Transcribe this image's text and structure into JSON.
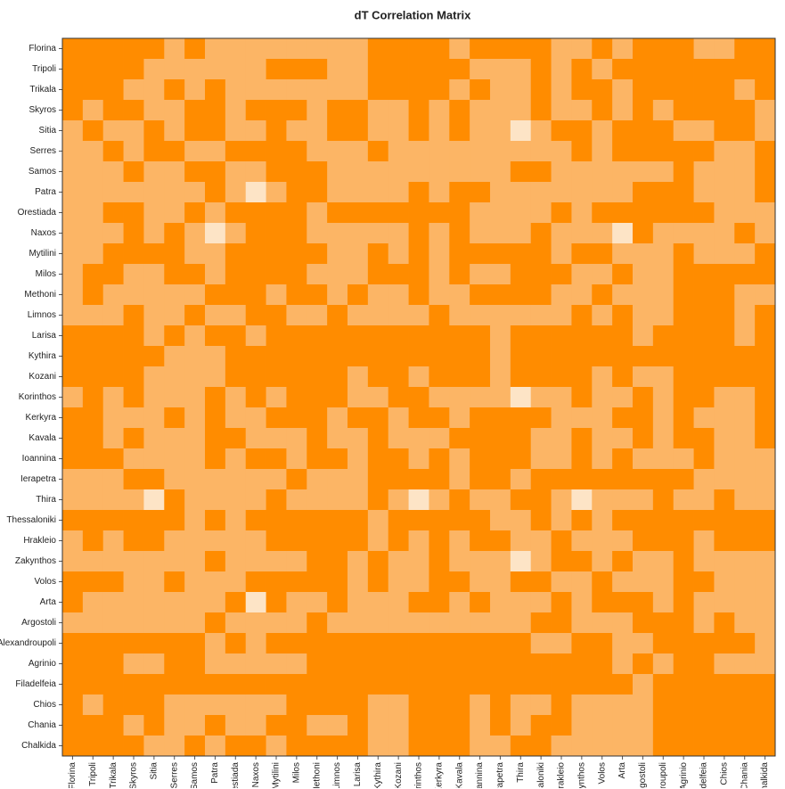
{
  "chart_data": {
    "type": "heatmap",
    "title": "dT Correlation Matrix",
    "categories": [
      "Florina",
      "Tripoli",
      "Trikala",
      "Skyros",
      "Sitia",
      "Serres",
      "Samos",
      "Patra",
      "Orestiada",
      "Naxos",
      "Mytilini",
      "Milos",
      "Methoni",
      "Limnos",
      "Larisa",
      "Kythira",
      "Kozani",
      "Korinthos",
      "Kerkyra",
      "Kavala",
      "Ioannina",
      "Ierapetra",
      "Thira",
      "Thessaloniki",
      "Hrakleio",
      "Zakynthos",
      "Volos",
      "Arta",
      "Argostoli",
      "Alexandroupoli",
      "Agrinio",
      "Filadelfeia",
      "Chios",
      "Chania",
      "Chalkida"
    ],
    "colors": [
      "#FF8C00",
      "#FCB565",
      "#FDE4C6"
    ],
    "values": [
      [
        0,
        0,
        0,
        0,
        0,
        1,
        0,
        1,
        1,
        1,
        1,
        1,
        1,
        1,
        1,
        0,
        0,
        0,
        0,
        1,
        0,
        0,
        0,
        0,
        1,
        1,
        0,
        1,
        0,
        0,
        0,
        1,
        1,
        0,
        0
      ],
      [
        0,
        0,
        0,
        0,
        1,
        1,
        1,
        1,
        1,
        1,
        0,
        0,
        0,
        1,
        1,
        0,
        0,
        0,
        0,
        0,
        1,
        1,
        1,
        0,
        1,
        0,
        1,
        0,
        0,
        0,
        0,
        0,
        0,
        0,
        0
      ],
      [
        0,
        0,
        0,
        1,
        1,
        0,
        1,
        0,
        1,
        1,
        1,
        1,
        1,
        1,
        1,
        0,
        0,
        0,
        0,
        1,
        0,
        1,
        1,
        0,
        1,
        0,
        0,
        1,
        0,
        0,
        0,
        0,
        0,
        1,
        0
      ],
      [
        0,
        1,
        0,
        0,
        1,
        1,
        0,
        0,
        1,
        0,
        0,
        0,
        1,
        0,
        0,
        1,
        1,
        0,
        1,
        0,
        1,
        1,
        1,
        0,
        1,
        1,
        0,
        1,
        0,
        1,
        0,
        0,
        0,
        0,
        1
      ],
      [
        1,
        0,
        1,
        1,
        0,
        1,
        0,
        0,
        1,
        1,
        0,
        1,
        1,
        0,
        0,
        1,
        1,
        0,
        1,
        0,
        1,
        1,
        2,
        1,
        0,
        0,
        1,
        0,
        0,
        0,
        1,
        1,
        0,
        0,
        1
      ],
      [
        1,
        1,
        0,
        1,
        0,
        0,
        1,
        1,
        0,
        0,
        0,
        0,
        1,
        1,
        1,
        0,
        1,
        1,
        1,
        1,
        1,
        1,
        1,
        1,
        1,
        0,
        1,
        0,
        0,
        0,
        0,
        0,
        1,
        1,
        0
      ],
      [
        1,
        1,
        1,
        0,
        1,
        1,
        0,
        0,
        1,
        1,
        0,
        0,
        0,
        1,
        1,
        1,
        1,
        1,
        1,
        1,
        1,
        1,
        0,
        0,
        1,
        1,
        1,
        1,
        1,
        1,
        0,
        1,
        1,
        1,
        0
      ],
      [
        1,
        1,
        1,
        1,
        1,
        1,
        1,
        0,
        1,
        2,
        1,
        0,
        0,
        1,
        1,
        1,
        1,
        0,
        1,
        0,
        0,
        1,
        1,
        1,
        1,
        1,
        1,
        1,
        0,
        0,
        0,
        1,
        1,
        1,
        0
      ],
      [
        1,
        1,
        0,
        0,
        1,
        1,
        0,
        1,
        0,
        0,
        0,
        0,
        1,
        0,
        0,
        0,
        0,
        0,
        0,
        0,
        1,
        1,
        1,
        1,
        0,
        1,
        0,
        0,
        0,
        0,
        0,
        0,
        1,
        1,
        1
      ],
      [
        1,
        1,
        1,
        0,
        1,
        0,
        1,
        2,
        1,
        0,
        0,
        0,
        1,
        1,
        1,
        1,
        1,
        0,
        1,
        0,
        1,
        1,
        1,
        0,
        1,
        1,
        1,
        2,
        0,
        1,
        1,
        1,
        1,
        0,
        1
      ],
      [
        1,
        1,
        0,
        0,
        0,
        0,
        1,
        1,
        0,
        0,
        0,
        0,
        0,
        1,
        1,
        0,
        1,
        0,
        1,
        0,
        0,
        0,
        0,
        0,
        1,
        0,
        0,
        1,
        1,
        1,
        0,
        1,
        1,
        1,
        0
      ],
      [
        1,
        0,
        0,
        1,
        1,
        0,
        0,
        1,
        0,
        0,
        0,
        0,
        1,
        1,
        1,
        0,
        0,
        0,
        1,
        0,
        1,
        1,
        0,
        0,
        0,
        1,
        1,
        0,
        1,
        1,
        0,
        0,
        0,
        0,
        0
      ],
      [
        1,
        0,
        1,
        1,
        1,
        1,
        1,
        0,
        0,
        0,
        1,
        0,
        0,
        1,
        0,
        1,
        1,
        0,
        1,
        1,
        0,
        0,
        0,
        0,
        1,
        1,
        0,
        1,
        1,
        1,
        0,
        0,
        0,
        1,
        1
      ],
      [
        1,
        1,
        1,
        0,
        1,
        1,
        0,
        1,
        1,
        0,
        0,
        1,
        1,
        0,
        1,
        1,
        1,
        1,
        0,
        1,
        1,
        1,
        1,
        1,
        1,
        0,
        1,
        0,
        1,
        1,
        0,
        0,
        0,
        1,
        0
      ],
      [
        0,
        0,
        0,
        0,
        1,
        0,
        1,
        0,
        0,
        1,
        0,
        0,
        0,
        0,
        0,
        0,
        0,
        0,
        0,
        0,
        0,
        1,
        0,
        0,
        0,
        0,
        0,
        0,
        1,
        0,
        0,
        0,
        0,
        1,
        0
      ],
      [
        0,
        0,
        0,
        0,
        0,
        1,
        1,
        1,
        0,
        0,
        0,
        0,
        0,
        0,
        0,
        0,
        0,
        0,
        0,
        0,
        0,
        1,
        0,
        0,
        0,
        0,
        0,
        0,
        0,
        0,
        0,
        0,
        0,
        0,
        0
      ],
      [
        0,
        0,
        0,
        0,
        1,
        1,
        1,
        1,
        0,
        0,
        0,
        0,
        0,
        0,
        1,
        0,
        0,
        1,
        0,
        0,
        0,
        1,
        0,
        0,
        0,
        0,
        1,
        0,
        1,
        1,
        0,
        0,
        0,
        0,
        0
      ],
      [
        1,
        0,
        1,
        0,
        1,
        1,
        1,
        0,
        1,
        0,
        1,
        0,
        0,
        0,
        1,
        1,
        0,
        0,
        1,
        1,
        1,
        1,
        2,
        1,
        1,
        0,
        1,
        1,
        0,
        1,
        0,
        0,
        1,
        1,
        0
      ],
      [
        0,
        0,
        1,
        1,
        1,
        0,
        1,
        0,
        1,
        1,
        0,
        0,
        0,
        1,
        0,
        0,
        1,
        0,
        0,
        1,
        0,
        0,
        0,
        0,
        1,
        1,
        1,
        0,
        0,
        1,
        0,
        1,
        1,
        1,
        0
      ],
      [
        0,
        0,
        1,
        0,
        1,
        1,
        1,
        0,
        0,
        1,
        1,
        1,
        0,
        1,
        1,
        0,
        1,
        1,
        1,
        0,
        0,
        0,
        0,
        1,
        1,
        0,
        1,
        1,
        0,
        1,
        0,
        0,
        1,
        1,
        0
      ],
      [
        0,
        0,
        0,
        1,
        1,
        1,
        1,
        0,
        1,
        0,
        0,
        1,
        0,
        0,
        1,
        0,
        0,
        1,
        0,
        1,
        0,
        0,
        0,
        1,
        1,
        0,
        1,
        0,
        1,
        1,
        1,
        0,
        1,
        1,
        1
      ],
      [
        1,
        1,
        1,
        0,
        0,
        1,
        1,
        1,
        1,
        1,
        1,
        0,
        1,
        1,
        1,
        0,
        0,
        0,
        0,
        1,
        0,
        0,
        1,
        0,
        0,
        0,
        0,
        0,
        0,
        0,
        0,
        1,
        1,
        1,
        1
      ],
      [
        1,
        1,
        1,
        1,
        2,
        0,
        1,
        1,
        1,
        1,
        0,
        1,
        1,
        1,
        1,
        0,
        1,
        2,
        1,
        0,
        1,
        1,
        0,
        0,
        1,
        2,
        1,
        1,
        1,
        0,
        1,
        1,
        0,
        1,
        1
      ],
      [
        0,
        0,
        0,
        0,
        0,
        0,
        1,
        0,
        1,
        0,
        0,
        0,
        0,
        0,
        0,
        1,
        0,
        0,
        0,
        0,
        0,
        1,
        1,
        0,
        1,
        0,
        1,
        0,
        0,
        0,
        0,
        0,
        0,
        0,
        0
      ],
      [
        1,
        0,
        1,
        0,
        0,
        1,
        1,
        1,
        1,
        1,
        0,
        0,
        0,
        0,
        0,
        1,
        0,
        1,
        0,
        1,
        0,
        0,
        1,
        1,
        0,
        1,
        1,
        1,
        0,
        0,
        0,
        1,
        0,
        0,
        0
      ],
      [
        1,
        1,
        1,
        1,
        1,
        1,
        1,
        0,
        1,
        1,
        1,
        1,
        0,
        0,
        1,
        0,
        1,
        1,
        0,
        1,
        1,
        1,
        2,
        1,
        0,
        0,
        1,
        0,
        1,
        1,
        0,
        1,
        1,
        1,
        1
      ],
      [
        0,
        0,
        0,
        1,
        1,
        0,
        1,
        1,
        1,
        0,
        0,
        0,
        0,
        0,
        1,
        0,
        1,
        1,
        0,
        0,
        1,
        1,
        0,
        0,
        1,
        1,
        0,
        1,
        1,
        1,
        0,
        0,
        1,
        1,
        1
      ],
      [
        0,
        1,
        1,
        1,
        1,
        1,
        1,
        1,
        0,
        2,
        0,
        1,
        1,
        0,
        1,
        1,
        1,
        0,
        0,
        1,
        0,
        1,
        1,
        1,
        0,
        1,
        0,
        0,
        0,
        1,
        0,
        1,
        1,
        1,
        1
      ],
      [
        1,
        1,
        1,
        1,
        1,
        1,
        1,
        0,
        1,
        1,
        1,
        1,
        0,
        1,
        1,
        1,
        1,
        1,
        1,
        1,
        1,
        1,
        1,
        0,
        0,
        1,
        1,
        1,
        0,
        0,
        0,
        1,
        0,
        1,
        1
      ],
      [
        0,
        0,
        0,
        0,
        0,
        0,
        0,
        1,
        0,
        1,
        0,
        0,
        0,
        0,
        0,
        0,
        0,
        0,
        0,
        0,
        0,
        0,
        0,
        1,
        1,
        0,
        0,
        1,
        1,
        0,
        0,
        0,
        0,
        0,
        1
      ],
      [
        0,
        0,
        0,
        1,
        1,
        0,
        0,
        1,
        1,
        1,
        1,
        1,
        0,
        0,
        0,
        0,
        0,
        0,
        0,
        0,
        0,
        0,
        0,
        0,
        0,
        0,
        0,
        1,
        0,
        1,
        0,
        0,
        1,
        1,
        1
      ],
      [
        0,
        0,
        0,
        0,
        0,
        0,
        0,
        0,
        0,
        0,
        0,
        0,
        0,
        0,
        0,
        0,
        0,
        0,
        0,
        0,
        0,
        0,
        0,
        0,
        0,
        0,
        0,
        0,
        1,
        0,
        0,
        0,
        0,
        0,
        0
      ],
      [
        0,
        1,
        0,
        0,
        0,
        1,
        1,
        1,
        1,
        1,
        1,
        0,
        0,
        0,
        0,
        1,
        1,
        0,
        0,
        0,
        1,
        0,
        1,
        1,
        0,
        1,
        1,
        1,
        1,
        0,
        0,
        0,
        0,
        0,
        0
      ],
      [
        0,
        0,
        0,
        1,
        0,
        1,
        1,
        0,
        1,
        1,
        0,
        0,
        1,
        1,
        0,
        1,
        1,
        0,
        0,
        0,
        1,
        0,
        1,
        0,
        0,
        1,
        1,
        1,
        1,
        0,
        0,
        0,
        0,
        0,
        0
      ],
      [
        0,
        0,
        0,
        0,
        1,
        1,
        0,
        1,
        0,
        0,
        1,
        0,
        0,
        0,
        0,
        1,
        1,
        0,
        0,
        0,
        1,
        1,
        0,
        0,
        1,
        1,
        1,
        1,
        1,
        0,
        0,
        0,
        0,
        0,
        0
      ]
    ]
  }
}
